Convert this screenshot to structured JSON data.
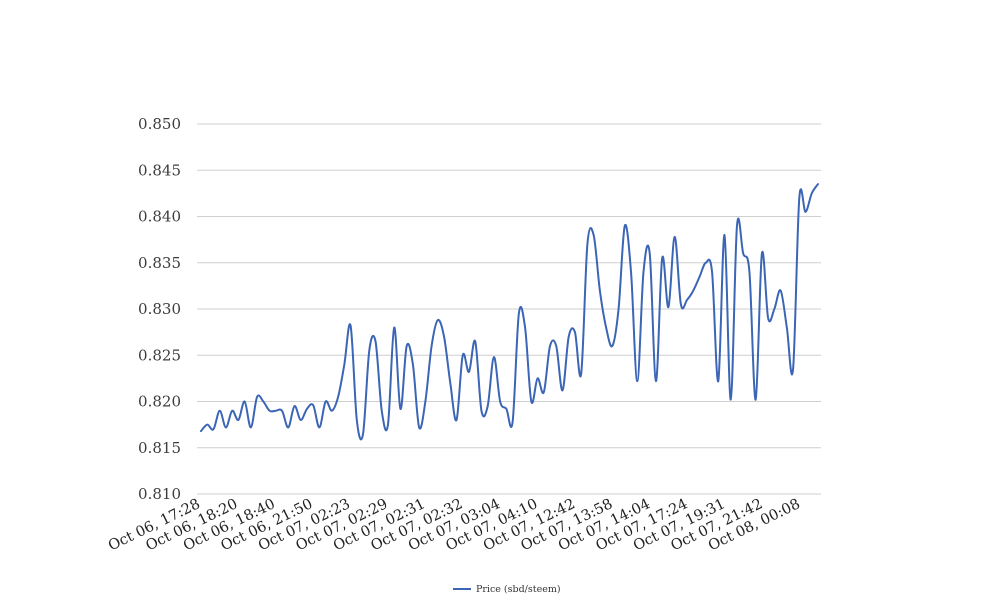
{
  "chart_data": {
    "type": "line",
    "title": "",
    "xlabel": "",
    "ylabel": "",
    "ylim": [
      0.81,
      0.85
    ],
    "yticks": [
      "0.810",
      "0.815",
      "0.820",
      "0.825",
      "0.830",
      "0.835",
      "0.840",
      "0.845",
      "0.850"
    ],
    "xtick_labels": [
      "Oct 06, 17:28",
      "Oct 06, 18:20",
      "Oct 06, 18:40",
      "Oct 06, 21:50",
      "Oct 07, 02:23",
      "Oct 07, 02:29",
      "Oct 07, 02:31",
      "Oct 07, 02:32",
      "Oct 07, 03:04",
      "Oct 07, 04:10",
      "Oct 07, 12:42",
      "Oct 07, 13:58",
      "Oct 07, 14:04",
      "Oct 07, 17:24",
      "Oct 07, 19:31",
      "Oct 07, 21:42",
      "Oct 08, 00:08"
    ],
    "grid": true,
    "legend_position": "bottom",
    "series": [
      {
        "name": "Price (sbd/steem)",
        "color": "#3b65b5",
        "values": [
          0.8168,
          0.8175,
          0.817,
          0.819,
          0.8172,
          0.819,
          0.818,
          0.82,
          0.8172,
          0.8205,
          0.82,
          0.819,
          0.819,
          0.819,
          0.8172,
          0.8195,
          0.818,
          0.8192,
          0.8196,
          0.8172,
          0.82,
          0.819,
          0.8205,
          0.824,
          0.8282,
          0.818,
          0.8165,
          0.8255,
          0.8265,
          0.819,
          0.8175,
          0.828,
          0.8192,
          0.826,
          0.824,
          0.8172,
          0.82,
          0.826,
          0.8288,
          0.827,
          0.822,
          0.818,
          0.825,
          0.8232,
          0.8265,
          0.819,
          0.8195,
          0.8248,
          0.82,
          0.8192,
          0.8178,
          0.8295,
          0.828,
          0.82,
          0.8225,
          0.821,
          0.826,
          0.826,
          0.8212,
          0.827,
          0.8275,
          0.823,
          0.837,
          0.838,
          0.832,
          0.828,
          0.826,
          0.83,
          0.839,
          0.834,
          0.8222,
          0.834,
          0.836,
          0.8222,
          0.8355,
          0.8302,
          0.8378,
          0.8305,
          0.831,
          0.832,
          0.8335,
          0.835,
          0.834,
          0.8222,
          0.838,
          0.8202,
          0.839,
          0.836,
          0.834,
          0.8202,
          0.836,
          0.829,
          0.83,
          0.832,
          0.828,
          0.8235,
          0.842,
          0.8405,
          0.8425,
          0.8435
        ]
      }
    ]
  }
}
